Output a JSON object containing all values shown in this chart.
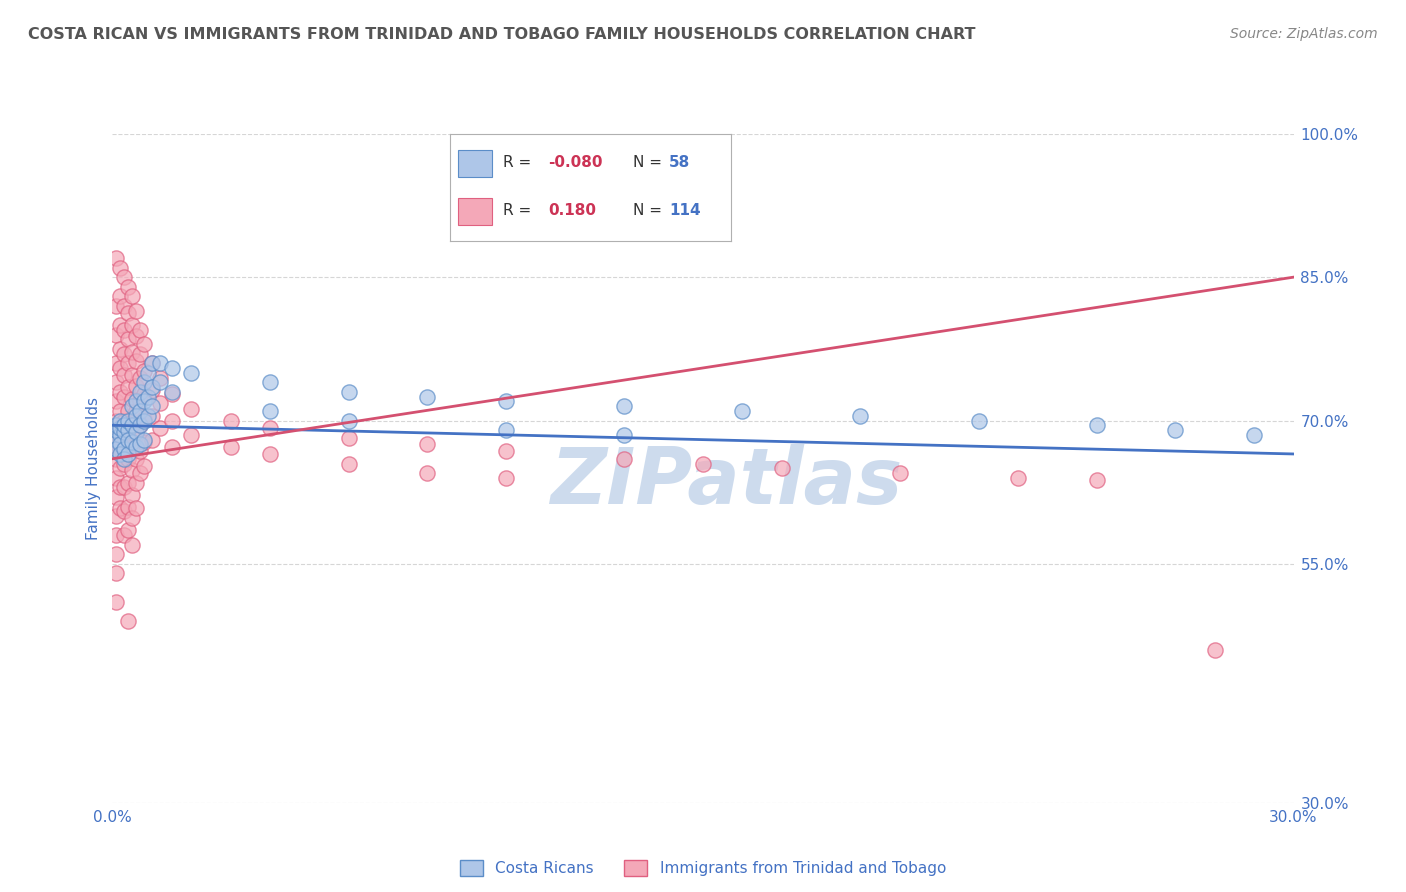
{
  "title": "COSTA RICAN VS IMMIGRANTS FROM TRINIDAD AND TOBAGO FAMILY HOUSEHOLDS CORRELATION CHART",
  "source": "Source: ZipAtlas.com",
  "ylabel": "Family Households",
  "xlim": [
    0.0,
    0.3
  ],
  "ylim": [
    0.3,
    1.0
  ],
  "yticks": [
    1.0,
    0.85,
    0.7,
    0.55,
    0.3
  ],
  "ytick_labels": [
    "100.0%",
    "85.0%",
    "70.0%",
    "55.0%",
    "30.0%"
  ],
  "xtick_positions": [
    0.0,
    0.3
  ],
  "xtick_labels": [
    "0.0%",
    "30.0%"
  ],
  "blue_fill": "#aec6e8",
  "blue_edge": "#5b8dc8",
  "pink_fill": "#f4a8b8",
  "pink_edge": "#e06080",
  "blue_line_color": "#4472c4",
  "pink_line_color": "#d45070",
  "blue_label": "Costa Ricans",
  "pink_label": "Immigrants from Trinidad and Tobago",
  "R_blue": -0.08,
  "N_blue": 58,
  "R_pink": 0.18,
  "N_pink": 114,
  "watermark": "ZIPatlas",
  "watermark_color": "#c8d8ec",
  "grid_color": "#cccccc",
  "title_color": "#555555",
  "axis_color": "#4472c4",
  "legend_R_color": "#cc3355",
  "legend_N_color": "#4472c4",
  "blue_trend": [
    0.0,
    0.3,
    0.695,
    0.665
  ],
  "pink_trend": [
    0.0,
    0.3,
    0.66,
    0.85
  ],
  "blue_scatter": [
    [
      0.001,
      0.68
    ],
    [
      0.001,
      0.69
    ],
    [
      0.001,
      0.695
    ],
    [
      0.001,
      0.67
    ],
    [
      0.002,
      0.685
    ],
    [
      0.002,
      0.692
    ],
    [
      0.002,
      0.7
    ],
    [
      0.002,
      0.675
    ],
    [
      0.002,
      0.665
    ],
    [
      0.003,
      0.688
    ],
    [
      0.003,
      0.695
    ],
    [
      0.003,
      0.67
    ],
    [
      0.003,
      0.66
    ],
    [
      0.004,
      0.69
    ],
    [
      0.004,
      0.68
    ],
    [
      0.004,
      0.7
    ],
    [
      0.004,
      0.665
    ],
    [
      0.005,
      0.715
    ],
    [
      0.005,
      0.695
    ],
    [
      0.005,
      0.678
    ],
    [
      0.006,
      0.72
    ],
    [
      0.006,
      0.705
    ],
    [
      0.006,
      0.688
    ],
    [
      0.006,
      0.672
    ],
    [
      0.007,
      0.73
    ],
    [
      0.007,
      0.71
    ],
    [
      0.007,
      0.695
    ],
    [
      0.007,
      0.675
    ],
    [
      0.008,
      0.74
    ],
    [
      0.008,
      0.72
    ],
    [
      0.008,
      0.7
    ],
    [
      0.008,
      0.68
    ],
    [
      0.009,
      0.75
    ],
    [
      0.009,
      0.725
    ],
    [
      0.009,
      0.705
    ],
    [
      0.01,
      0.76
    ],
    [
      0.01,
      0.735
    ],
    [
      0.01,
      0.715
    ],
    [
      0.012,
      0.76
    ],
    [
      0.012,
      0.74
    ],
    [
      0.015,
      0.755
    ],
    [
      0.015,
      0.73
    ],
    [
      0.02,
      0.75
    ],
    [
      0.04,
      0.74
    ],
    [
      0.04,
      0.71
    ],
    [
      0.06,
      0.73
    ],
    [
      0.06,
      0.7
    ],
    [
      0.08,
      0.725
    ],
    [
      0.1,
      0.72
    ],
    [
      0.1,
      0.69
    ],
    [
      0.13,
      0.715
    ],
    [
      0.13,
      0.685
    ],
    [
      0.16,
      0.71
    ],
    [
      0.19,
      0.705
    ],
    [
      0.22,
      0.7
    ],
    [
      0.25,
      0.695
    ],
    [
      0.27,
      0.69
    ],
    [
      0.29,
      0.685
    ]
  ],
  "pink_scatter": [
    [
      0.001,
      0.87
    ],
    [
      0.001,
      0.82
    ],
    [
      0.001,
      0.79
    ],
    [
      0.001,
      0.76
    ],
    [
      0.001,
      0.74
    ],
    [
      0.001,
      0.72
    ],
    [
      0.001,
      0.7
    ],
    [
      0.001,
      0.68
    ],
    [
      0.001,
      0.66
    ],
    [
      0.001,
      0.64
    ],
    [
      0.001,
      0.62
    ],
    [
      0.001,
      0.6
    ],
    [
      0.001,
      0.58
    ],
    [
      0.001,
      0.56
    ],
    [
      0.001,
      0.54
    ],
    [
      0.001,
      0.51
    ],
    [
      0.002,
      0.86
    ],
    [
      0.002,
      0.83
    ],
    [
      0.002,
      0.8
    ],
    [
      0.002,
      0.775
    ],
    [
      0.002,
      0.755
    ],
    [
      0.002,
      0.73
    ],
    [
      0.002,
      0.71
    ],
    [
      0.002,
      0.69
    ],
    [
      0.002,
      0.67
    ],
    [
      0.002,
      0.65
    ],
    [
      0.002,
      0.63
    ],
    [
      0.002,
      0.608
    ],
    [
      0.003,
      0.85
    ],
    [
      0.003,
      0.82
    ],
    [
      0.003,
      0.795
    ],
    [
      0.003,
      0.77
    ],
    [
      0.003,
      0.748
    ],
    [
      0.003,
      0.725
    ],
    [
      0.003,
      0.7
    ],
    [
      0.003,
      0.678
    ],
    [
      0.003,
      0.655
    ],
    [
      0.003,
      0.63
    ],
    [
      0.003,
      0.605
    ],
    [
      0.003,
      0.58
    ],
    [
      0.004,
      0.84
    ],
    [
      0.004,
      0.812
    ],
    [
      0.004,
      0.785
    ],
    [
      0.004,
      0.76
    ],
    [
      0.004,
      0.735
    ],
    [
      0.004,
      0.71
    ],
    [
      0.004,
      0.685
    ],
    [
      0.004,
      0.66
    ],
    [
      0.004,
      0.635
    ],
    [
      0.004,
      0.61
    ],
    [
      0.004,
      0.585
    ],
    [
      0.004,
      0.49
    ],
    [
      0.005,
      0.83
    ],
    [
      0.005,
      0.8
    ],
    [
      0.005,
      0.772
    ],
    [
      0.005,
      0.748
    ],
    [
      0.005,
      0.722
    ],
    [
      0.005,
      0.698
    ],
    [
      0.005,
      0.672
    ],
    [
      0.005,
      0.648
    ],
    [
      0.005,
      0.622
    ],
    [
      0.005,
      0.598
    ],
    [
      0.005,
      0.57
    ],
    [
      0.006,
      0.815
    ],
    [
      0.006,
      0.788
    ],
    [
      0.006,
      0.762
    ],
    [
      0.006,
      0.736
    ],
    [
      0.006,
      0.71
    ],
    [
      0.006,
      0.685
    ],
    [
      0.006,
      0.66
    ],
    [
      0.006,
      0.635
    ],
    [
      0.006,
      0.608
    ],
    [
      0.007,
      0.795
    ],
    [
      0.007,
      0.77
    ],
    [
      0.007,
      0.745
    ],
    [
      0.007,
      0.72
    ],
    [
      0.007,
      0.695
    ],
    [
      0.007,
      0.668
    ],
    [
      0.007,
      0.645
    ],
    [
      0.008,
      0.78
    ],
    [
      0.008,
      0.752
    ],
    [
      0.008,
      0.728
    ],
    [
      0.008,
      0.702
    ],
    [
      0.008,
      0.678
    ],
    [
      0.008,
      0.652
    ],
    [
      0.01,
      0.76
    ],
    [
      0.01,
      0.732
    ],
    [
      0.01,
      0.705
    ],
    [
      0.01,
      0.68
    ],
    [
      0.012,
      0.745
    ],
    [
      0.012,
      0.718
    ],
    [
      0.012,
      0.692
    ],
    [
      0.015,
      0.728
    ],
    [
      0.015,
      0.7
    ],
    [
      0.015,
      0.672
    ],
    [
      0.02,
      0.712
    ],
    [
      0.02,
      0.685
    ],
    [
      0.03,
      0.7
    ],
    [
      0.03,
      0.672
    ],
    [
      0.04,
      0.692
    ],
    [
      0.04,
      0.665
    ],
    [
      0.06,
      0.682
    ],
    [
      0.06,
      0.655
    ],
    [
      0.08,
      0.675
    ],
    [
      0.08,
      0.645
    ],
    [
      0.1,
      0.668
    ],
    [
      0.1,
      0.64
    ],
    [
      0.13,
      0.66
    ],
    [
      0.15,
      0.655
    ],
    [
      0.17,
      0.65
    ],
    [
      0.2,
      0.645
    ],
    [
      0.23,
      0.64
    ],
    [
      0.25,
      0.638
    ],
    [
      0.28,
      0.46
    ]
  ]
}
